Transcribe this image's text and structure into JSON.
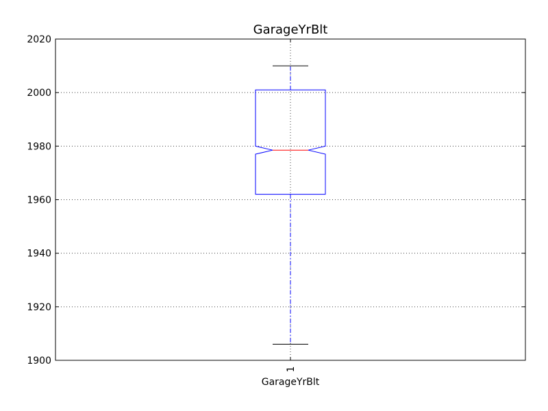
{
  "chart_data": {
    "type": "boxplot",
    "title": "GarageYrBlt",
    "xlabel": "GarageYrBlt",
    "ylabel": "",
    "ylim": [
      1900,
      2020
    ],
    "yticks": [
      1900,
      1920,
      1940,
      1960,
      1980,
      2000,
      2020
    ],
    "categories": [
      "1"
    ],
    "grid": true,
    "notched": true,
    "series": [
      {
        "whisker_low": 1906,
        "q1": 1962,
        "notch_low": 1977,
        "median": 1978.5,
        "notch_high": 1980,
        "q3": 2001,
        "whisker_high": 2010
      }
    ],
    "colors": {
      "box": "#0000ff",
      "median": "#ff0000",
      "whisker": "#0000ff",
      "cap": "#000000",
      "grid": "#000000",
      "frame": "#000000"
    }
  }
}
